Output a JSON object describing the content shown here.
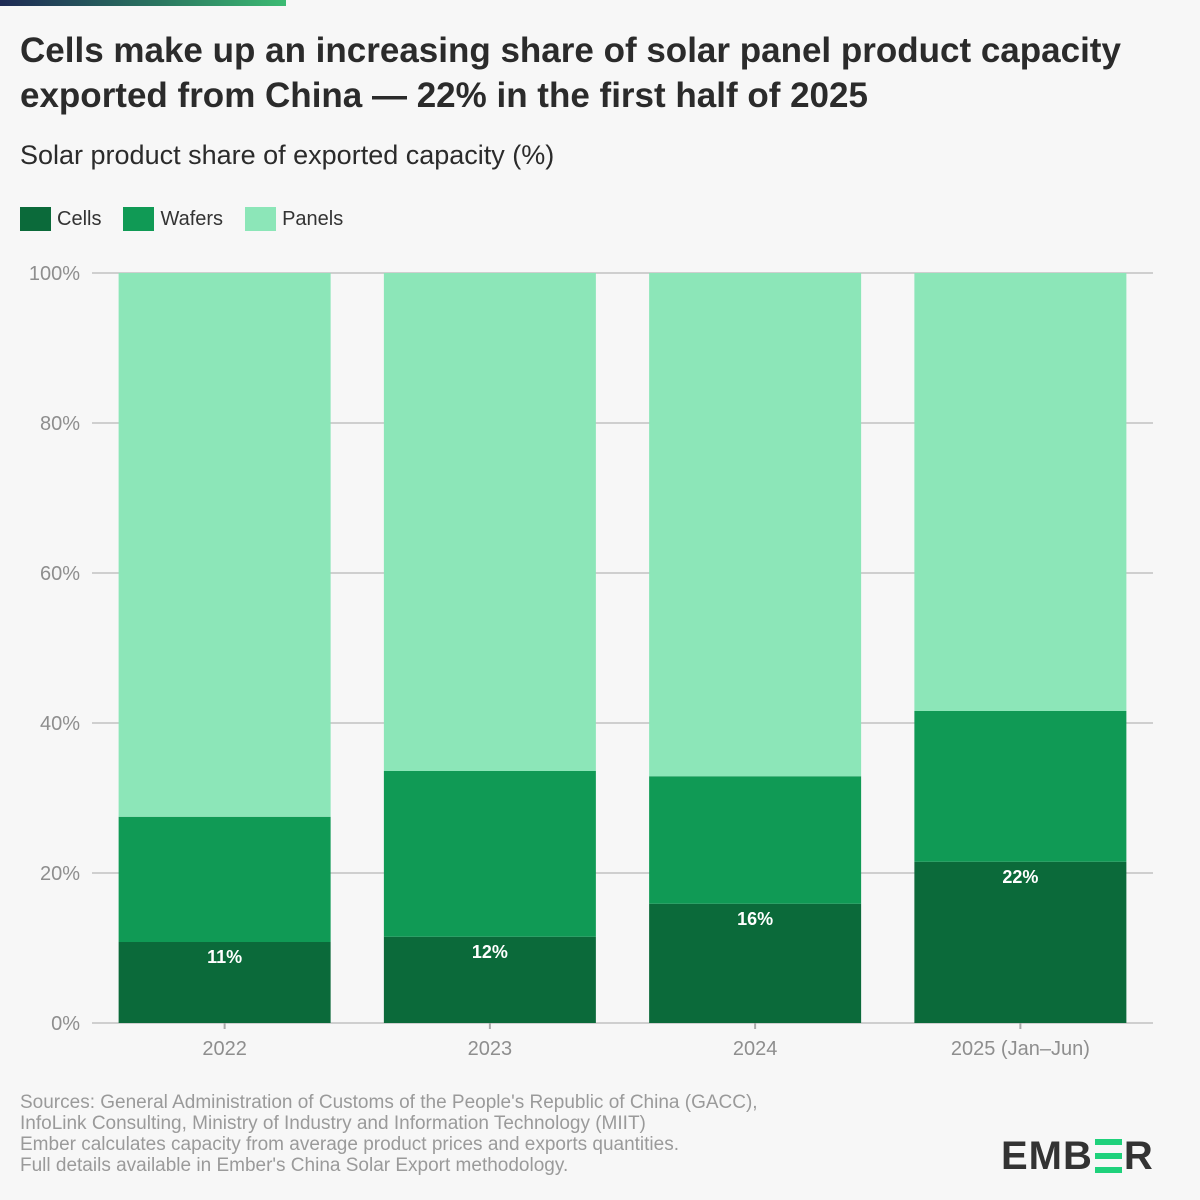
{
  "header": {
    "title": "Cells make up an increasing share of solar panel product capacity exported from China — 22% in the first half of 2025",
    "subtitle": "Solar product share of exported capacity (%)"
  },
  "legend": [
    {
      "label": "Cells",
      "color": "#0b6a3a"
    },
    {
      "label": "Wafers",
      "color": "#109a55"
    },
    {
      "label": "Panels",
      "color": "#8ce6b8"
    }
  ],
  "chart_data": {
    "type": "bar",
    "stacked": true,
    "title": "Cells make up an increasing share of solar panel product capacity exported from China — 22% in the first half of 2025",
    "subtitle": "Solar product share of exported capacity (%)",
    "xlabel": "",
    "ylabel": "",
    "categories": [
      "2022",
      "2023",
      "2024",
      "2025 (Jan–Jun)"
    ],
    "series": [
      {
        "name": "Cells",
        "color": "#0b6a3a",
        "values": [
          10.8,
          11.5,
          15.9,
          21.5
        ]
      },
      {
        "name": "Wafers",
        "color": "#109a55",
        "values": [
          16.7,
          22.1,
          17.0,
          20.1
        ]
      },
      {
        "name": "Panels",
        "color": "#8ce6b8",
        "values": [
          72.5,
          66.4,
          67.1,
          58.4
        ]
      }
    ],
    "data_labels": [
      "11%",
      "12%",
      "16%",
      "22%"
    ],
    "ylim": [
      0,
      100
    ],
    "yticks": [
      0,
      20,
      40,
      60,
      80,
      100
    ],
    "ytick_labels": [
      "0%",
      "20%",
      "40%",
      "60%",
      "80%",
      "100%"
    ],
    "grid": true,
    "legend_position": "top-left"
  },
  "footer": {
    "sources": [
      "Sources: General Administration of Customs of the People's Republic of China (GACC),",
      "InfoLink Consulting, Ministry of Industry and Information Technology (MIIT)",
      "Ember calculates capacity from average product prices and exports quantities.",
      "Full details available in Ember's China Solar Export methodology."
    ],
    "logo": {
      "left": "EMB",
      "right": "R",
      "accent_color": "#1fd17b"
    }
  }
}
